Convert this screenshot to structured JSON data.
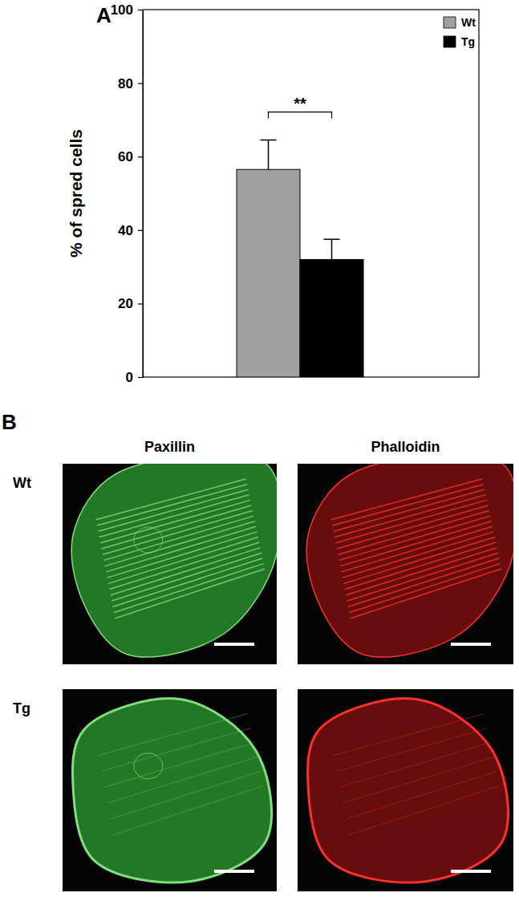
{
  "chart_data": {
    "type": "bar",
    "y_label": "% of spred cells",
    "categories": [
      null
    ],
    "series": [
      {
        "name": "Wt",
        "color": "#a0a0a0",
        "values": [
          56.5
        ],
        "errors": [
          8
        ]
      },
      {
        "name": "Tg",
        "color": "#000000",
        "values": [
          32
        ],
        "errors": [
          5.5
        ]
      }
    ],
    "ylim": [
      0,
      100
    ],
    "yticks": [
      0,
      20,
      40,
      60,
      80,
      100
    ],
    "legend": "top-right",
    "tick_labels": "y",
    "annotations": [
      {
        "text": "**",
        "between": [
          0,
          1
        ]
      }
    ]
  },
  "figure": {
    "panel_labels": [
      "A",
      "B"
    ],
    "panel_b": {
      "columns": [
        "Paxillin",
        "Phalloidin"
      ],
      "rows": [
        "Wt",
        "Tg"
      ]
    }
  }
}
